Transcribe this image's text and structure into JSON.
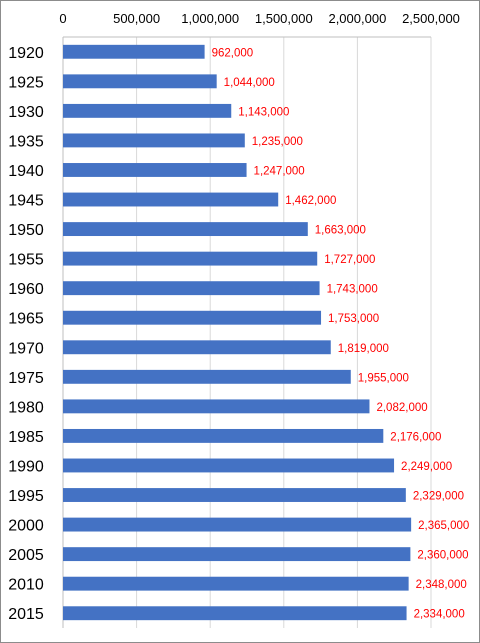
{
  "chart_data": {
    "type": "bar",
    "orientation": "horizontal",
    "title": "",
    "xlabel": "",
    "ylabel": "",
    "xlim": [
      0,
      2500000
    ],
    "x_ticks": [
      0,
      500000,
      1000000,
      1500000,
      2000000,
      2500000
    ],
    "x_tick_labels": [
      "0",
      "500,000",
      "1,000,000",
      "1,500,000",
      "2,000,000",
      "2,500,000"
    ],
    "x_axis_position": "top",
    "grid": true,
    "legend": "none",
    "categories": [
      "1920",
      "1925",
      "1930",
      "1935",
      "1940",
      "1945",
      "1950",
      "1955",
      "1960",
      "1965",
      "1970",
      "1975",
      "1980",
      "1985",
      "1990",
      "1995",
      "2000",
      "2005",
      "2010",
      "2015"
    ],
    "values": [
      962000,
      1044000,
      1143000,
      1235000,
      1247000,
      1462000,
      1663000,
      1727000,
      1743000,
      1753000,
      1819000,
      1955000,
      2082000,
      2176000,
      2249000,
      2329000,
      2365000,
      2360000,
      2348000,
      2334000
    ],
    "data_labels": [
      "962,000",
      "1,044,000",
      "1,143,000",
      "1,235,000",
      "1,247,000",
      "1,462,000",
      "1,663,000",
      "1,727,000",
      "1,743,000",
      "1,753,000",
      "1,819,000",
      "1,955,000",
      "2,082,000",
      "2,176,000",
      "2,249,000",
      "2,329,000",
      "2,365,000",
      "2,360,000",
      "2,348,000",
      "2,334,000"
    ],
    "colors": {
      "bar": "#4472c4",
      "data_label": "#ff0000",
      "grid": "#d9d9d9",
      "axis": "#bfbfbf",
      "border": "#8c8c8c"
    }
  }
}
